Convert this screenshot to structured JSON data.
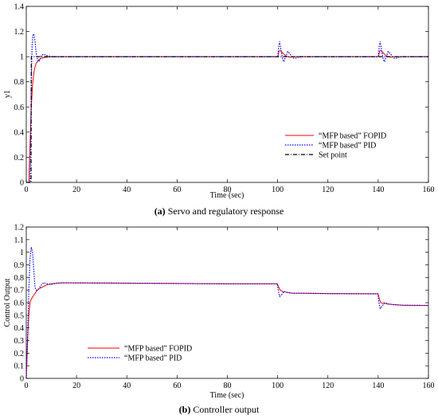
{
  "chart_data": [
    {
      "type": "line",
      "ylabel": "y1",
      "xlabel": "Time (sec)",
      "xlim": [
        0,
        160
      ],
      "ylim": [
        0,
        1.4
      ],
      "xticks": [
        0,
        20,
        40,
        60,
        80,
        100,
        120,
        140,
        160
      ],
      "yticks": [
        0,
        0.2,
        0.4,
        0.6,
        0.8,
        1,
        1.2,
        1.4
      ],
      "grid": false,
      "legend_position": "bottom-right",
      "caption_tag": "(a)",
      "caption_text": "Servo and regulatory response",
      "series": [
        {
          "name": "“MFP based” FOPID",
          "color": "#ff0000",
          "style": "solid",
          "x": [
            0,
            1,
            1.5,
            2,
            2.5,
            3,
            3.5,
            4,
            5,
            6,
            8,
            10,
            14,
            20,
            40,
            60,
            80,
            99.9,
            100.1,
            100.5,
            101,
            102,
            103,
            104,
            105,
            106,
            108,
            110,
            120,
            139.9,
            140.1,
            140.5,
            141,
            142,
            143,
            144,
            145,
            146,
            148,
            150,
            160
          ],
          "y": [
            0,
            0,
            0.3,
            0.6,
            0.78,
            0.87,
            0.92,
            0.95,
            0.975,
            0.988,
            0.996,
            0.999,
            1,
            1,
            1,
            1,
            1,
            1,
            1,
            1.04,
            1.05,
            1.03,
            1.01,
            1.0,
            0.995,
            1.0,
            1.0,
            1,
            1,
            1,
            1,
            1.04,
            1.05,
            1.03,
            1.01,
            1.0,
            0.995,
            1.0,
            1.0,
            1,
            1
          ]
        },
        {
          "name": "“MFP based” PID",
          "color": "#0000ff",
          "style": "dotted",
          "x": [
            0,
            1.5,
            1.8,
            2,
            2.3,
            2.6,
            3,
            3.5,
            4,
            4.5,
            5,
            5.5,
            6,
            7,
            8,
            10,
            12,
            20,
            40,
            60,
            80,
            99.9,
            100.1,
            100.4,
            100.8,
            101.3,
            102,
            102.5,
            103,
            104,
            105,
            106,
            107,
            108,
            110,
            120,
            139.9,
            140.1,
            140.4,
            140.8,
            141.3,
            142,
            142.5,
            143,
            144,
            145,
            146,
            147,
            148,
            150,
            160
          ],
          "y": [
            0,
            0,
            0.4,
            0.8,
            1.08,
            1.17,
            1.18,
            1.12,
            1.02,
            0.97,
            0.96,
            0.98,
            1.01,
            1.02,
            1.01,
            1.0,
            1.0,
            1,
            1,
            1,
            1,
            1,
            1,
            1.08,
            1.12,
            1.06,
            0.98,
            0.96,
            0.99,
            1.04,
            1.02,
            0.99,
            0.985,
            0.995,
            1.0,
            1,
            1,
            1,
            1.08,
            1.12,
            1.06,
            0.98,
            0.96,
            0.99,
            1.04,
            1.02,
            0.99,
            0.985,
            0.995,
            1.0,
            1
          ]
        },
        {
          "name": "Set point",
          "color": "#000000",
          "style": "dashdot",
          "x": [
            0,
            1.9,
            2,
            160
          ],
          "y": [
            0,
            0,
            1,
            1
          ]
        }
      ]
    },
    {
      "type": "line",
      "ylabel": "Control Output",
      "xlabel": "Time (sec)",
      "xlim": [
        0,
        160
      ],
      "ylim": [
        0,
        1.2
      ],
      "xticks": [
        0,
        20,
        40,
        60,
        80,
        100,
        120,
        140,
        160
      ],
      "yticks": [
        0,
        0.1,
        0.2,
        0.3,
        0.4,
        0.5,
        0.6,
        0.7,
        0.8,
        0.9,
        1,
        1.1,
        1.2
      ],
      "grid": false,
      "legend_position": "bottom-left",
      "caption_tag": "(b)",
      "caption_text": "Controller output",
      "series": [
        {
          "name": "“MFP based” FOPID",
          "color": "#ff0000",
          "style": "solid",
          "x": [
            0,
            0.5,
            1,
            1.5,
            2,
            3,
            4,
            5,
            6,
            8,
            10,
            12,
            14,
            20,
            40,
            60,
            80,
            99.9,
            100.5,
            101,
            102,
            104,
            106,
            110,
            120,
            139.9,
            140.5,
            141,
            142,
            144,
            146,
            150,
            160
          ],
          "y": [
            0,
            0.3,
            0.5,
            0.6,
            0.63,
            0.66,
            0.69,
            0.71,
            0.72,
            0.74,
            0.75,
            0.755,
            0.757,
            0.757,
            0.755,
            0.752,
            0.75,
            0.75,
            0.72,
            0.7,
            0.69,
            0.68,
            0.675,
            0.675,
            0.672,
            0.67,
            0.63,
            0.6,
            0.595,
            0.59,
            0.585,
            0.58,
            0.578
          ]
        },
        {
          "name": "“MFP based” PID",
          "color": "#0000ff",
          "style": "dotted",
          "x": [
            0,
            0.5,
            1,
            1.5,
            2,
            2.5,
            3,
            3.5,
            4,
            5,
            6,
            7,
            8,
            10,
            12,
            14,
            20,
            40,
            60,
            80,
            99.9,
            100.3,
            100.8,
            101.5,
            102.5,
            104,
            106,
            110,
            120,
            139.9,
            140.3,
            140.8,
            141.5,
            142.5,
            144,
            146,
            150,
            160
          ],
          "y": [
            0,
            0.3,
            0.7,
            0.95,
            1.04,
            1.0,
            0.85,
            0.72,
            0.7,
            0.71,
            0.74,
            0.76,
            0.75,
            0.745,
            0.755,
            0.758,
            0.757,
            0.755,
            0.752,
            0.75,
            0.75,
            0.69,
            0.65,
            0.66,
            0.69,
            0.68,
            0.675,
            0.675,
            0.672,
            0.67,
            0.6,
            0.555,
            0.57,
            0.6,
            0.59,
            0.585,
            0.58,
            0.578
          ]
        }
      ]
    }
  ]
}
